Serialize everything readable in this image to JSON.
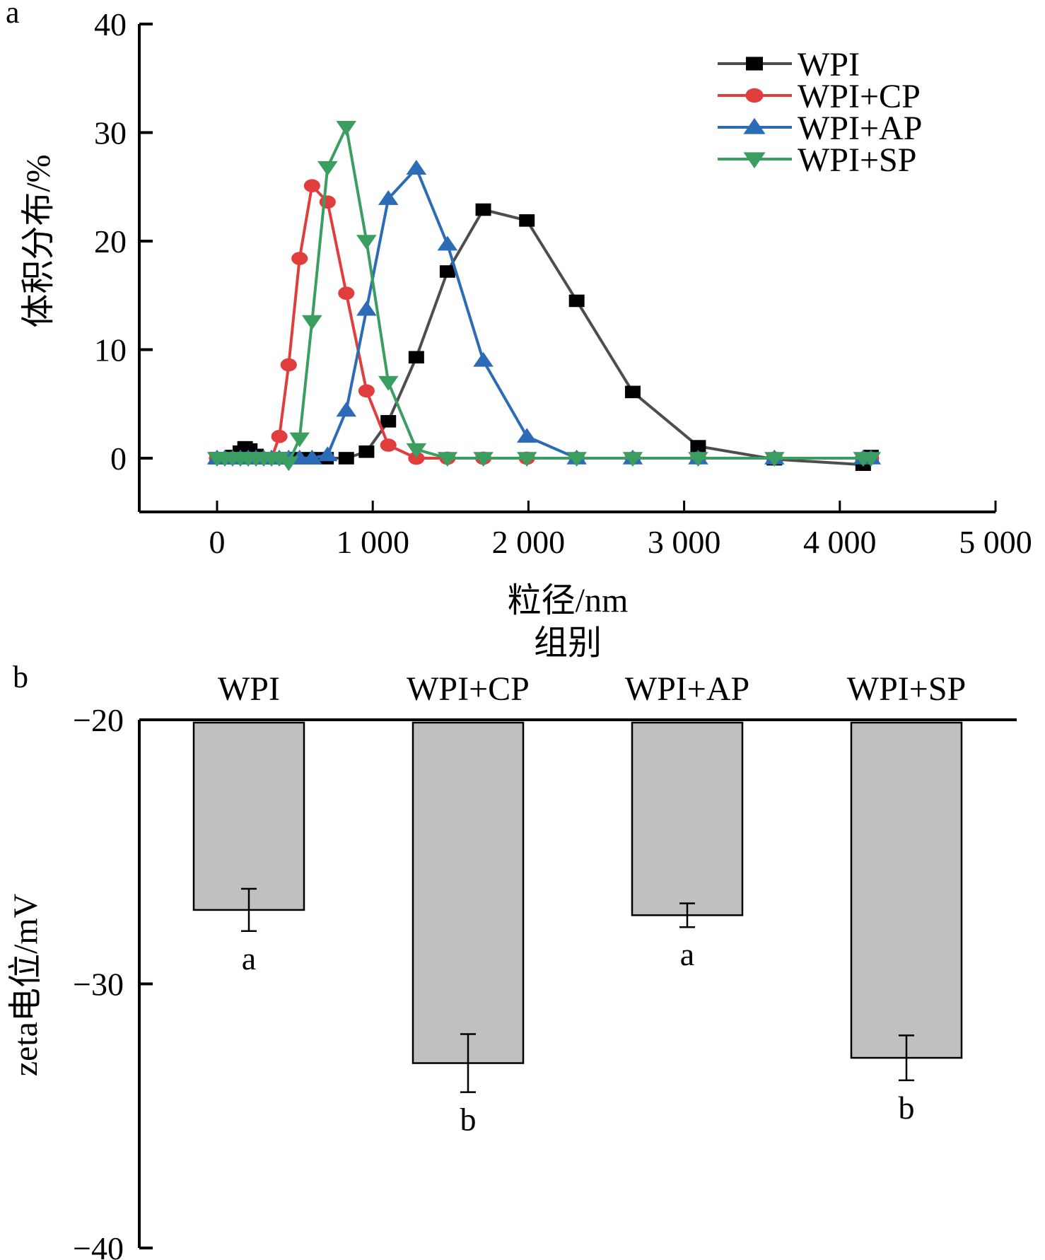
{
  "chart_data": [
    {
      "panel": "a",
      "type": "line",
      "xlabel": "粒径/nm",
      "ylabel": "体积分布/%",
      "xlim": [
        -500,
        5000
      ],
      "ylim": [
        -5,
        40
      ],
      "xticks": [
        0,
        1000,
        2000,
        3000,
        4000,
        5000
      ],
      "xtick_labels": [
        "0",
        "1 000",
        "2 000",
        "3 000",
        "4 000",
        "5 000"
      ],
      "yticks": [
        0,
        10,
        20,
        30,
        40
      ],
      "ytick_labels": [
        "0",
        "10",
        "20",
        "30",
        "40"
      ],
      "grid": false,
      "legend_position": "top-right",
      "series": [
        {
          "name": "WPI",
          "color": "#4d4d4d",
          "marker_color": "#000000",
          "marker": "square",
          "x": [
            0,
            50,
            100,
            150,
            180,
            210,
            250,
            300,
            400,
            500,
            600,
            700,
            830,
            960,
            1100,
            1280,
            1480,
            1710,
            1990,
            2310,
            2670,
            3090,
            3580,
            4150,
            4200
          ],
          "y": [
            0,
            0,
            0.2,
            0.6,
            1.0,
            0.8,
            0.3,
            0,
            0,
            0,
            0,
            0,
            0,
            0.6,
            3.4,
            9.3,
            17.2,
            22.9,
            21.9,
            14.5,
            6.1,
            1.1,
            -0.1,
            -0.6,
            0.2
          ]
        },
        {
          "name": "WPI+CP",
          "color": "#e23d3d",
          "marker_color": "#e23d3d",
          "marker": "circle",
          "x": [
            0,
            50,
            100,
            150,
            200,
            250,
            300,
            350,
            400,
            460,
            530,
            610,
            710,
            830,
            960,
            1100,
            1280,
            1480,
            1710,
            1990,
            2310,
            2670,
            3090,
            3580,
            4150,
            4200
          ],
          "y": [
            0,
            0,
            0,
            0,
            0,
            0,
            0,
            0,
            2.0,
            8.6,
            18.4,
            25.1,
            23.6,
            15.2,
            6.2,
            1.2,
            0,
            0,
            0,
            0,
            0,
            0,
            0,
            0,
            0,
            0
          ]
        },
        {
          "name": "WPI+AP",
          "color": "#2c6bb5",
          "marker_color": "#2c6bb5",
          "marker": "triangle-up",
          "x": [
            0,
            50,
            100,
            150,
            200,
            250,
            300,
            350,
            400,
            460,
            530,
            610,
            710,
            830,
            960,
            1100,
            1280,
            1480,
            1710,
            1990,
            2310,
            2670,
            3090,
            3580,
            4150,
            4200
          ],
          "y": [
            0,
            0,
            0,
            0,
            0,
            0,
            0,
            0,
            0,
            0,
            0,
            0,
            0.3,
            4.4,
            13.7,
            23.9,
            26.7,
            19.7,
            9.0,
            2.0,
            0,
            0,
            0,
            0,
            0,
            0
          ]
        },
        {
          "name": "WPI+SP",
          "color": "#3a9e61",
          "marker_color": "#3a9e61",
          "marker": "triangle-down",
          "x": [
            0,
            50,
            100,
            150,
            200,
            250,
            300,
            350,
            400,
            460,
            530,
            610,
            710,
            830,
            960,
            1100,
            1280,
            1480,
            1710,
            1990,
            2310,
            2670,
            3090,
            3580,
            4150,
            4200
          ],
          "y": [
            0,
            0,
            0,
            0,
            0,
            0,
            0,
            0,
            0,
            -0.4,
            1.8,
            12.6,
            26.8,
            30.5,
            20.0,
            7.0,
            0.8,
            0,
            0,
            0,
            0,
            0,
            0,
            0,
            0,
            0
          ]
        }
      ]
    },
    {
      "panel": "b",
      "type": "bar",
      "title": "组别",
      "xlabel": "组别",
      "ylabel": "zeta电位/mV",
      "ylim": [
        -40,
        -20
      ],
      "yticks": [
        -20,
        -30,
        -40
      ],
      "ytick_labels": [
        "−20",
        "−30",
        "−40"
      ],
      "grid": false,
      "categories": [
        "WPI",
        "WPI+CP",
        "WPI+AP",
        "WPI+SP"
      ],
      "values": [
        -27.2,
        -33.0,
        -27.4,
        -32.8
      ],
      "errors": [
        0.8,
        1.1,
        0.45,
        0.85
      ],
      "significance": [
        "a",
        "b",
        "a",
        "b"
      ],
      "bar_color": "#c0c0c0"
    }
  ],
  "panel_labels": {
    "a": "a",
    "b": "b"
  }
}
